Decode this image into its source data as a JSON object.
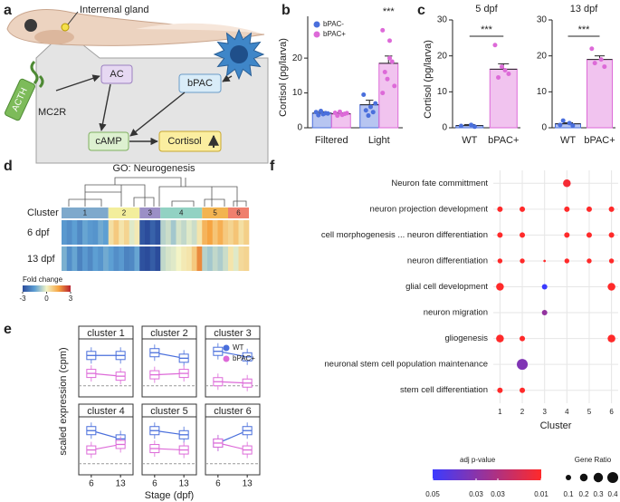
{
  "panel_labels": [
    "a",
    "b",
    "c",
    "d",
    "e",
    "f"
  ],
  "diagram": {
    "gland_label": "Interrenal gland",
    "nodes": [
      "ACTH",
      "MC2R",
      "AC",
      "bPAC",
      "cAMP",
      "Cortisol"
    ]
  },
  "heatmap": {
    "title": "GO: Neurogenesis",
    "row_labels": [
      "Cluster",
      "6 dpf",
      "13 dpf"
    ],
    "clusters": {
      "labels": [
        "1",
        "2",
        "3",
        "4",
        "5",
        "6"
      ],
      "colors": [
        "#7ea9cc",
        "#f3ee9c",
        "#9b8fc6",
        "#92d2c3",
        "#f2b451",
        "#ef7f6e"
      ]
    },
    "rows": [
      [
        [
          -1.6,
          -1.8,
          -1.5,
          -1.9,
          -1.4,
          -1.6,
          -1.7,
          -1.3,
          -1.5
        ],
        [
          0.4,
          0.8,
          0.3,
          0.6,
          -0.2,
          0.2
        ],
        [
          -2.8,
          -3,
          -2.6,
          -2.9
        ],
        [
          -0.6,
          -0.4,
          -0.8,
          -0.3,
          -0.5,
          -0.2,
          -0.4,
          0.3
        ],
        [
          1.2,
          1.5,
          0.9,
          1.3,
          0.8
        ],
        [
          0.6,
          0.9,
          0.4,
          0.7
        ]
      ],
      [
        [
          -1.2,
          -1.8,
          -1.4,
          -2.0,
          -1.6,
          -1.9,
          -1.5,
          -1.7,
          -1.3
        ],
        [
          -1.5,
          -1.8,
          -1.6,
          -2.0,
          -1.9,
          -1.4
        ],
        [
          -2.9,
          -3,
          -2.7,
          -3
        ],
        [
          -0.5,
          -0.3,
          -0.2,
          0,
          0.2,
          0.3,
          0.8,
          1.8
        ],
        [
          -0.6,
          -0.8,
          -0.5,
          -0.7,
          -0.4
        ],
        [
          0.3,
          -0.2,
          0.5,
          0.6
        ]
      ]
    ],
    "colorbar": {
      "title": "Fold change",
      "range": [
        -3,
        3
      ],
      "ticks": [
        -3,
        0,
        3
      ],
      "colors": [
        "#2b4c9b",
        "#5d9fd3",
        "#f3f4c6",
        "#f6a441",
        "#b8212f"
      ]
    }
  },
  "chart_data": [
    {
      "type": "bar",
      "ylabel": "Cortisol (pg/larva)",
      "categories": [
        "Filtered",
        "Light"
      ],
      "series": [
        {
          "name": "bPAC-",
          "color": "#4a6fdc",
          "values": [
            4.2,
            6.6
          ],
          "errors": [
            0.4,
            1.3
          ],
          "points": [
            [
              4.5,
              3.9,
              4.2,
              3.6,
              4.8,
              4.1
            ],
            [
              9.5,
              6,
              4.5,
              5,
              3.5,
              7
            ]
          ]
        },
        {
          "name": "bPAC+",
          "color": "#dd6ad8",
          "values": [
            4.0,
            18.5
          ],
          "errors": [
            0.3,
            2.1
          ],
          "points": [
            [
              4.3,
              3.7,
              4.0,
              3.5,
              4.6,
              4.2
            ],
            [
              28,
              25,
              19,
              16,
              14,
              12,
              10,
              20
            ]
          ]
        }
      ],
      "ylim": [
        0,
        32
      ],
      "yticks": [
        0,
        10,
        20
      ],
      "annotation": "***"
    },
    {
      "type": "bar",
      "title": "5 dpf",
      "ylabel": "Cortisol (pg/larva)",
      "categories": [
        "WT",
        "bPAC+"
      ],
      "colors": [
        "#4a6fdc",
        "#dd6ad8"
      ],
      "values": [
        0.6,
        16.3
      ],
      "errors": [
        0.3,
        1.5
      ],
      "points": [
        [
          0.5,
          0.8,
          0.3
        ],
        [
          23,
          16,
          15,
          14,
          17
        ]
      ],
      "ylim": [
        0,
        30
      ],
      "yticks": [
        0,
        10,
        20,
        30
      ],
      "annotation": "***"
    },
    {
      "type": "bar",
      "title": "13 dpf",
      "categories": [
        "WT",
        "bPAC+"
      ],
      "colors": [
        "#4a6fdc",
        "#dd6ad8"
      ],
      "values": [
        1.1,
        19
      ],
      "errors": [
        0.3,
        1.0
      ],
      "points": [
        [
          0.8,
          1.3,
          0.6,
          2
        ],
        [
          22,
          19,
          17,
          18
        ]
      ],
      "ylim": [
        0,
        30
      ],
      "yticks": [
        0,
        10,
        20,
        30
      ],
      "annotation": "***"
    },
    {
      "type": "facet",
      "xlabel": "Stage (dpf)",
      "ylabel": "scaled expression (cpm)",
      "x": [
        6,
        13
      ],
      "xticks": [
        6,
        13
      ],
      "xlim": [
        3,
        16
      ],
      "ylim": [
        -0.4,
        1.7
      ],
      "hline": 0,
      "legend": [
        {
          "name": "WT",
          "color": "#4a6fdc"
        },
        {
          "name": "bPAC+",
          "color": "#dd6ad8"
        }
      ],
      "panels": [
        {
          "title": "cluster 1",
          "series": [
            [
              1.1,
              1.1
            ],
            [
              0.45,
              0.35
            ]
          ]
        },
        {
          "title": "cluster 2",
          "series": [
            [
              1.2,
              1.0
            ],
            [
              0.4,
              0.45
            ]
          ]
        },
        {
          "title": "cluster 3",
          "series": [
            [
              1.25,
              1.05
            ],
            [
              0.15,
              0.1
            ]
          ]
        },
        {
          "title": "cluster 4",
          "series": [
            [
              1.2,
              0.9
            ],
            [
              0.5,
              0.7
            ]
          ]
        },
        {
          "title": "cluster 5",
          "series": [
            [
              1.2,
              1.05
            ],
            [
              0.55,
              0.5
            ]
          ]
        },
        {
          "title": "cluster 6",
          "series": [
            [
              0.75,
              1.2
            ],
            [
              0.75,
              0.5
            ]
          ]
        }
      ]
    },
    {
      "type": "dot",
      "xlabel": "Cluster",
      "categories": [
        "Neuron fate committment",
        "neuron projection development",
        "cell morphogenesis ... neuron differentiation",
        "neuron differentiation",
        "glial cell development",
        "neuron migration",
        "gliogenesis",
        "neuronal stem cell population maintenance",
        "stem cell differentiation"
      ],
      "xticks": [
        1,
        2,
        3,
        4,
        5,
        6
      ],
      "xlim": [
        0.7,
        6.3
      ],
      "grid": true,
      "points": {
        "x": [
          4,
          1,
          2,
          4,
          5,
          6,
          1,
          2,
          4,
          5,
          6,
          1,
          2,
          3,
          4,
          5,
          6,
          1,
          3,
          6,
          3,
          1,
          2,
          6,
          2,
          1,
          2
        ],
        "category": [
          "Neuron fate committment",
          "neuron projection development",
          "neuron projection development",
          "neuron projection development",
          "neuron projection development",
          "neuron projection development",
          "cell morphogenesis ... neuron differentiation",
          "cell morphogenesis ... neuron differentiation",
          "cell morphogenesis ... neuron differentiation",
          "cell morphogenesis ... neuron differentiation",
          "cell morphogenesis ... neuron differentiation",
          "neuron differentiation",
          "neuron differentiation",
          "neuron differentiation",
          "neuron differentiation",
          "neuron differentiation",
          "neuron differentiation",
          "glial cell development",
          "glial cell development",
          "glial cell development",
          "neuron migration",
          "gliogenesis",
          "gliogenesis",
          "gliogenesis",
          "neuronal stem cell population maintenance",
          "stem cell differentiation",
          "stem cell differentiation"
        ],
        "size": [
          0.2,
          0.1,
          0.1,
          0.1,
          0.1,
          0.1,
          0.1,
          0.1,
          0.1,
          0.1,
          0.1,
          0.08,
          0.08,
          0.02,
          0.08,
          0.08,
          0.08,
          0.2,
          0.1,
          0.2,
          0.1,
          0.2,
          0.1,
          0.2,
          0.4,
          0.1,
          0.1
        ],
        "p": [
          0.012,
          0.01,
          0.01,
          0.01,
          0.01,
          0.01,
          0.01,
          0.01,
          0.01,
          0.01,
          0.01,
          0.01,
          0.01,
          0.01,
          0.01,
          0.01,
          0.01,
          0.01,
          0.05,
          0.01,
          0.032,
          0.01,
          0.01,
          0.01,
          0.036,
          0.01,
          0.01
        ]
      },
      "color_legend": {
        "title": "adj p-value",
        "range": [
          0.05,
          0.01
        ],
        "ticks": [
          0.05,
          {
            "value": 0.034,
            "label": "0.03"
          },
          {
            "value": 0.026,
            "label": "0.03"
          },
          0.01
        ],
        "colors": [
          "#3b3bff",
          "#ff2a2a"
        ]
      },
      "size_legend": {
        "title": "Gene Ratio",
        "ticks": [
          0.1,
          0.2,
          0.3,
          0.4
        ]
      }
    }
  ]
}
